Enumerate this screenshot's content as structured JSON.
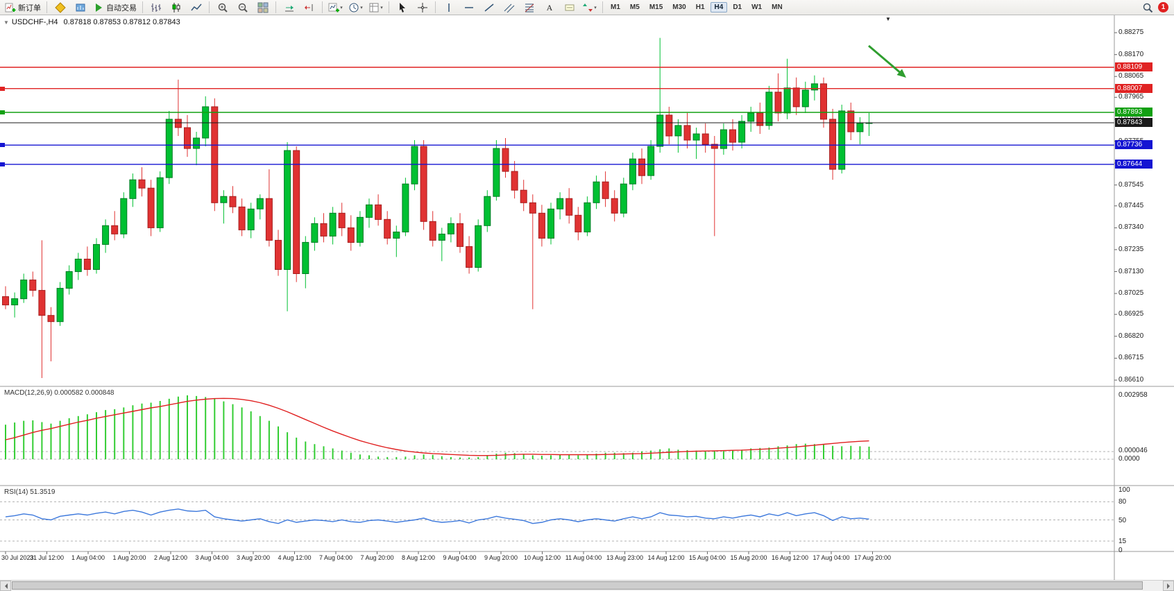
{
  "toolbar": {
    "new_order_label": "新订单",
    "autotrade_label": "自动交易",
    "timeframes": [
      "M1",
      "M5",
      "M15",
      "M30",
      "H1",
      "H4",
      "D1",
      "W1",
      "MN"
    ],
    "active_timeframe": "H4",
    "notification_count": "1",
    "icons": [
      "new-order-icon",
      "compass-icon",
      "market-watch-icon",
      "autotrade-play-icon",
      "bar-chart-icon",
      "candlestick-icon",
      "line-chart-icon",
      "zoom-in-icon",
      "zoom-out-icon",
      "tile-windows-icon",
      "auto-scroll-icon",
      "chart-shift-icon",
      "new-chart-icon",
      "period-clock-icon",
      "template-icon",
      "cursor-icon",
      "crosshair-icon",
      "vertical-line-icon",
      "horizontal-line-icon",
      "trendline-icon",
      "channel-icon",
      "fibonacci-icon",
      "text-icon",
      "label-icon",
      "arrows-icon",
      "search-icon",
      "notification-badge"
    ]
  },
  "chart": {
    "title": "USDCHF-,H4",
    "ohlc": "0.87818 0.87853 0.87812 0.87843",
    "shift_marker": "▼",
    "one_click_arrow": "▼",
    "colors": {
      "candle_up": "#00c032",
      "candle_up_border": "#007a24",
      "candle_down": "#e03232",
      "candle_down_border": "#a61e1e",
      "macd_bar": "#32cd32",
      "macd_signal": "#e02020",
      "rsi_line": "#3c78dc",
      "arrow_annotation": "#2f9e2f",
      "resistance": "#e02222",
      "pivot": "#12a012",
      "bid": "#1a1a1a",
      "support": "#1414d2"
    },
    "levels": [
      {
        "value": "0.88109",
        "price": 0.88109,
        "color": "#e02222",
        "name": "resistance-1",
        "marker": false,
        "width": 1.4
      },
      {
        "value": "0.88007",
        "price": 0.88007,
        "color": "#e02222",
        "name": "resistance-2",
        "marker": true,
        "width": 1.4
      },
      {
        "value": "0.87893",
        "price": 0.87893,
        "color": "#12a012",
        "name": "pivot-green",
        "marker": true,
        "width": 1.4
      },
      {
        "value": "0.87843",
        "price": 0.87843,
        "color": "#1a1a1a",
        "name": "bid-price",
        "marker": false,
        "width": 1
      },
      {
        "value": "0.87736",
        "price": 0.87736,
        "color": "#1414d2",
        "name": "support-1",
        "marker": true,
        "width": 1.4
      },
      {
        "value": "0.87644",
        "price": 0.87644,
        "color": "#1414d2",
        "name": "support-2",
        "marker": true,
        "width": 1.4
      }
    ],
    "price_ticks": [
      "0.88275",
      "0.88170",
      "0.88065",
      "0.87965",
      "0.87860",
      "0.87755",
      "0.87650",
      "0.87545",
      "0.87445",
      "0.87340",
      "0.87235",
      "0.87130",
      "0.87025",
      "0.86925",
      "0.86820",
      "0.86715",
      "0.86610"
    ],
    "time_labels": [
      "30 Jul 2023",
      "31 Jul 12:00",
      "1 Aug 04:00",
      "1 Aug 20:00",
      "2 Aug 12:00",
      "3 Aug 04:00",
      "3 Aug 20:00",
      "4 Aug 12:00",
      "7 Aug 04:00",
      "7 Aug 20:00",
      "8 Aug 12:00",
      "9 Aug 04:00",
      "9 Aug 20:00",
      "10 Aug 12:00",
      "11 Aug 04:00",
      "13 Aug 23:00",
      "14 Aug 12:00",
      "15 Aug 04:00",
      "15 Aug 20:00",
      "16 Aug 12:00",
      "17 Aug 04:00",
      "17 Aug 20:00"
    ]
  },
  "macd_panel": {
    "label": "MACD(12,26,9) 0.000582 0.000848",
    "axis": [
      "0.002958",
      "0.000046",
      "0.0000"
    ]
  },
  "rsi_panel": {
    "label": "RSI(14) 51.3519",
    "axis": [
      "100",
      "80",
      "50",
      "15",
      "0"
    ]
  },
  "chart_data": {
    "type": "candlestick",
    "symbol": "USDCHF-",
    "timeframe": "H4",
    "title": "USDCHF-,H4",
    "ohlc_display": {
      "open": "0.87818",
      "high": "0.87853",
      "low": "0.87812",
      "close": "0.87843"
    },
    "y_range": [
      0.8658,
      0.88355
    ],
    "candles": [
      [
        0.8701,
        0.8706,
        0.8695,
        0.8697
      ],
      [
        0.8697,
        0.8703,
        0.8691,
        0.87
      ],
      [
        0.87,
        0.8712,
        0.8698,
        0.8709
      ],
      [
        0.8709,
        0.8713,
        0.8701,
        0.8704
      ],
      [
        0.8704,
        0.8728,
        0.8662,
        0.8692
      ],
      [
        0.8692,
        0.8696,
        0.867,
        0.8689
      ],
      [
        0.8689,
        0.8708,
        0.8687,
        0.8705
      ],
      [
        0.8705,
        0.8716,
        0.8702,
        0.8713
      ],
      [
        0.8713,
        0.8722,
        0.8709,
        0.8719
      ],
      [
        0.8719,
        0.8725,
        0.8711,
        0.8714
      ],
      [
        0.8714,
        0.8729,
        0.8712,
        0.8726
      ],
      [
        0.8726,
        0.8738,
        0.8722,
        0.8735
      ],
      [
        0.8735,
        0.8742,
        0.8728,
        0.8731
      ],
      [
        0.8731,
        0.8751,
        0.8729,
        0.8748
      ],
      [
        0.8748,
        0.876,
        0.8744,
        0.8757
      ],
      [
        0.8757,
        0.8763,
        0.8749,
        0.8753
      ],
      [
        0.8753,
        0.8757,
        0.873,
        0.8734
      ],
      [
        0.8734,
        0.8761,
        0.8732,
        0.8758
      ],
      [
        0.8758,
        0.879,
        0.8755,
        0.8786
      ],
      [
        0.8786,
        0.8805,
        0.8778,
        0.8782
      ],
      [
        0.8782,
        0.8788,
        0.8768,
        0.8772
      ],
      [
        0.8772,
        0.878,
        0.8764,
        0.8777
      ],
      [
        0.8777,
        0.8797,
        0.8773,
        0.8792
      ],
      [
        0.8792,
        0.8796,
        0.8742,
        0.8746
      ],
      [
        0.8746,
        0.8752,
        0.8736,
        0.8749
      ],
      [
        0.8749,
        0.8754,
        0.8741,
        0.8744
      ],
      [
        0.8744,
        0.8748,
        0.873,
        0.8733
      ],
      [
        0.8733,
        0.8746,
        0.8729,
        0.8743
      ],
      [
        0.8743,
        0.875,
        0.8738,
        0.8748
      ],
      [
        0.8748,
        0.8762,
        0.8725,
        0.8728
      ],
      [
        0.8728,
        0.8733,
        0.8711,
        0.8714
      ],
      [
        0.8714,
        0.8775,
        0.8694,
        0.8771
      ],
      [
        0.8771,
        0.8773,
        0.8708,
        0.8712
      ],
      [
        0.8712,
        0.873,
        0.8705,
        0.8727
      ],
      [
        0.8727,
        0.8739,
        0.8723,
        0.8736
      ],
      [
        0.8736,
        0.8741,
        0.8727,
        0.873
      ],
      [
        0.873,
        0.8744,
        0.8726,
        0.8741
      ],
      [
        0.8741,
        0.8746,
        0.873,
        0.8734
      ],
      [
        0.8734,
        0.874,
        0.8723,
        0.8727
      ],
      [
        0.8727,
        0.8742,
        0.8725,
        0.8739
      ],
      [
        0.8739,
        0.8748,
        0.8734,
        0.8745
      ],
      [
        0.8745,
        0.875,
        0.8735,
        0.8738
      ],
      [
        0.8738,
        0.8742,
        0.8726,
        0.8729
      ],
      [
        0.8729,
        0.8735,
        0.872,
        0.8732
      ],
      [
        0.8732,
        0.8758,
        0.873,
        0.8755
      ],
      [
        0.8755,
        0.8776,
        0.8752,
        0.8773
      ],
      [
        0.8773,
        0.8776,
        0.8733,
        0.8737
      ],
      [
        0.8737,
        0.8742,
        0.8725,
        0.8728
      ],
      [
        0.8728,
        0.8734,
        0.8718,
        0.8731
      ],
      [
        0.8731,
        0.8739,
        0.8727,
        0.8736
      ],
      [
        0.8736,
        0.8741,
        0.8722,
        0.8725
      ],
      [
        0.8725,
        0.873,
        0.8712,
        0.8715
      ],
      [
        0.8715,
        0.8738,
        0.8713,
        0.8735
      ],
      [
        0.8735,
        0.8752,
        0.8732,
        0.8749
      ],
      [
        0.8749,
        0.8776,
        0.8747,
        0.8772
      ],
      [
        0.8772,
        0.8777,
        0.8758,
        0.8761
      ],
      [
        0.8761,
        0.8766,
        0.8748,
        0.8752
      ],
      [
        0.8752,
        0.8757,
        0.8742,
        0.8746
      ],
      [
        0.8746,
        0.875,
        0.8695,
        0.8741
      ],
      [
        0.8741,
        0.8745,
        0.8725,
        0.8729
      ],
      [
        0.8729,
        0.8746,
        0.8726,
        0.8743
      ],
      [
        0.8743,
        0.8751,
        0.8738,
        0.8748
      ],
      [
        0.8748,
        0.8753,
        0.8736,
        0.874
      ],
      [
        0.874,
        0.8744,
        0.8728,
        0.8732
      ],
      [
        0.8732,
        0.8749,
        0.873,
        0.8746
      ],
      [
        0.8746,
        0.8759,
        0.8743,
        0.8756
      ],
      [
        0.8756,
        0.8761,
        0.8744,
        0.8748
      ],
      [
        0.8748,
        0.8752,
        0.8737,
        0.8741
      ],
      [
        0.8741,
        0.8758,
        0.8739,
        0.8755
      ],
      [
        0.8755,
        0.877,
        0.8752,
        0.8767
      ],
      [
        0.8767,
        0.8772,
        0.8755,
        0.8759
      ],
      [
        0.8759,
        0.8776,
        0.8757,
        0.8773
      ],
      [
        0.8773,
        0.8825,
        0.877,
        0.8788
      ],
      [
        0.8788,
        0.8792,
        0.8774,
        0.8778
      ],
      [
        0.8778,
        0.8786,
        0.877,
        0.8783
      ],
      [
        0.8783,
        0.8789,
        0.8772,
        0.8776
      ],
      [
        0.8776,
        0.8782,
        0.8767,
        0.8779
      ],
      [
        0.8779,
        0.8784,
        0.877,
        0.8774
      ],
      [
        0.8774,
        0.8778,
        0.873,
        0.8772
      ],
      [
        0.8772,
        0.8784,
        0.8769,
        0.8781
      ],
      [
        0.8781,
        0.8786,
        0.8771,
        0.8775
      ],
      [
        0.8775,
        0.8788,
        0.8772,
        0.8785
      ],
      [
        0.8785,
        0.8792,
        0.878,
        0.8789
      ],
      [
        0.8789,
        0.8794,
        0.8779,
        0.8783
      ],
      [
        0.8783,
        0.8802,
        0.8781,
        0.8799
      ],
      [
        0.8799,
        0.8808,
        0.8785,
        0.8789
      ],
      [
        0.8789,
        0.8815,
        0.8786,
        0.8801
      ],
      [
        0.8801,
        0.8806,
        0.8788,
        0.8792
      ],
      [
        0.8792,
        0.8804,
        0.8789,
        0.88
      ],
      [
        0.88,
        0.8807,
        0.8795,
        0.8803
      ],
      [
        0.8803,
        0.8806,
        0.8782,
        0.8786
      ],
      [
        0.8786,
        0.8791,
        0.8757,
        0.8762
      ],
      [
        0.8762,
        0.8793,
        0.876,
        0.879
      ],
      [
        0.879,
        0.8794,
        0.8776,
        0.878
      ],
      [
        0.878,
        0.8787,
        0.8774,
        0.8784
      ],
      [
        0.8784,
        0.8789,
        0.8778,
        0.87843
      ]
    ],
    "indicators": {
      "macd": {
        "params": "12,26,9",
        "main": 0.000582,
        "signal": 0.000848,
        "scale_max": 0.002958,
        "histogram": [
          0.0016,
          0.0017,
          0.00178,
          0.0018,
          0.00172,
          0.00165,
          0.00178,
          0.0019,
          0.002,
          0.00208,
          0.00218,
          0.00228,
          0.00232,
          0.0024,
          0.0025,
          0.00258,
          0.00262,
          0.0027,
          0.0028,
          0.0029,
          0.00296,
          0.00293,
          0.00288,
          0.0028,
          0.00268,
          0.00255,
          0.0024,
          0.00222,
          0.002,
          0.00178,
          0.00152,
          0.00125,
          0.001,
          0.00082,
          0.0007,
          0.0006,
          0.0005,
          0.0004,
          0.0003,
          0.00022,
          0.00018,
          0.00012,
          0.0001,
          0.0001,
          0.00012,
          0.00018,
          0.00022,
          0.0002,
          0.00014,
          0.0001,
          8e-05,
          8e-05,
          0.0001,
          0.00018,
          0.00026,
          0.0003,
          0.00028,
          0.00022,
          0.00018,
          0.00016,
          0.00018,
          0.0002,
          0.0002,
          0.00018,
          0.0002,
          0.00026,
          0.0003,
          0.0003,
          0.00028,
          0.0003,
          0.00036,
          0.0004,
          0.00046,
          0.0005,
          0.00044,
          0.00042,
          0.0004,
          0.00038,
          0.0004,
          0.00038,
          0.0004,
          0.00044,
          0.0005,
          0.00052,
          0.00054,
          0.0006,
          0.00064,
          0.0007,
          0.00072,
          0.0007,
          0.00068,
          0.00062,
          0.0006,
          0.00062,
          0.0006,
          0.000582
        ],
        "signal_line": [
          0.0009,
          0.001,
          0.00112,
          0.00124,
          0.00134,
          0.00142,
          0.00152,
          0.00162,
          0.00172,
          0.0018,
          0.0019,
          0.00198,
          0.00206,
          0.00214,
          0.00222,
          0.0023,
          0.00238,
          0.00244,
          0.00252,
          0.0026,
          0.00268,
          0.00274,
          0.00278,
          0.00281,
          0.00282,
          0.00281,
          0.00277,
          0.00271,
          0.00262,
          0.0025,
          0.00236,
          0.0022,
          0.00202,
          0.00184,
          0.00166,
          0.00148,
          0.00131,
          0.00115,
          0.001,
          0.00086,
          0.00074,
          0.00063,
          0.00053,
          0.00045,
          0.00038,
          0.00033,
          0.00029,
          0.00026,
          0.00024,
          0.00022,
          0.0002,
          0.00018,
          0.00017,
          0.00017,
          0.00018,
          0.0002,
          0.00022,
          0.00023,
          0.00023,
          0.00022,
          0.00022,
          0.00021,
          0.00021,
          0.00021,
          0.00021,
          0.00021,
          0.00022,
          0.00023,
          0.00024,
          0.00025,
          0.00026,
          0.00028,
          0.0003,
          0.00032,
          0.00034,
          0.00036,
          0.00037,
          0.00038,
          0.00039,
          0.0004,
          0.00041,
          0.00042,
          0.00044,
          0.00046,
          0.00048,
          0.00051,
          0.00054,
          0.00057,
          0.00061,
          0.00065,
          0.00069,
          0.00073,
          0.00077,
          0.0008,
          0.00083,
          0.000848
        ]
      },
      "rsi": {
        "period": 14,
        "current": 51.3519,
        "levels": [
          80,
          50,
          15
        ],
        "values": [
          55,
          57,
          60,
          58,
          52,
          50,
          56,
          58,
          60,
          58,
          61,
          63,
          60,
          64,
          66,
          63,
          58,
          63,
          66,
          68,
          65,
          64,
          66,
          55,
          52,
          50,
          48,
          50,
          52,
          47,
          44,
          50,
          46,
          48,
          50,
          49,
          47,
          50,
          47,
          46,
          49,
          50,
          48,
          46,
          48,
          50,
          53,
          48,
          46,
          47,
          49,
          45,
          50,
          52,
          56,
          53,
          51,
          49,
          44,
          46,
          50,
          52,
          50,
          47,
          50,
          52,
          50,
          48,
          52,
          55,
          52,
          55,
          62,
          58,
          57,
          55,
          56,
          53,
          52,
          55,
          53,
          56,
          58,
          55,
          60,
          57,
          62,
          57,
          60,
          62,
          57,
          49,
          55,
          52,
          53,
          51.35
        ]
      }
    },
    "annotations": [
      {
        "type": "arrow",
        "color": "#2f9e2f",
        "direction": "down-right"
      }
    ]
  }
}
